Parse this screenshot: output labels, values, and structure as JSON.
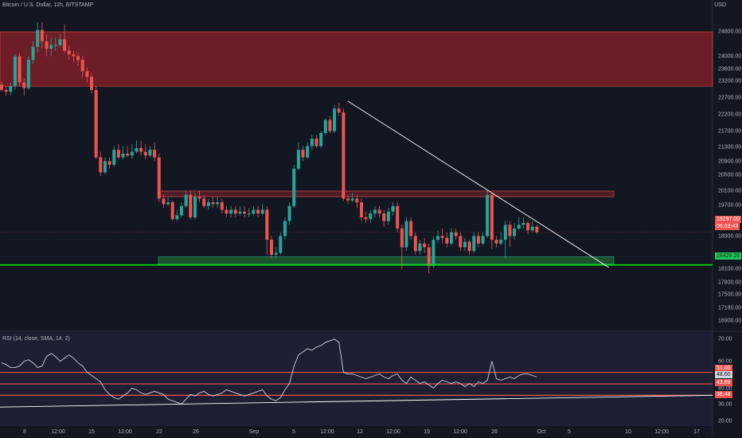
{
  "chart": {
    "symbol_title": "Bitcoin / U.S. Dollar, 12h, BITSTAMP",
    "currency": "USD",
    "rsi_title": "RSI (14, close, SMA, 14, 2)"
  },
  "price_axis": [
    "24800.00",
    "24000.00",
    "23600.00",
    "23200.00",
    "22700.00",
    "22200.00",
    "21700.00",
    "21300.00",
    "20900.00",
    "20500.00",
    "20100.00",
    "19700.00",
    "18900.00",
    "18100.00",
    "17800.00",
    "17500.00",
    "17180.00",
    "16900.00"
  ],
  "rsi_axis": [
    "70.00",
    "60.00",
    "40.00",
    "30.00",
    "20.00"
  ],
  "price_tags": {
    "current": "19297.00",
    "countdown": "06:03:43",
    "support": "18428.26"
  },
  "rsi_tags": [
    "51.00",
    "48.60",
    "43.69",
    "36.48"
  ],
  "date_axis": [
    "8",
    "12:00",
    "15",
    "12:00",
    "22",
    "26",
    "Sep",
    "5",
    "12:00",
    "12",
    "12:00",
    "19",
    "12:00",
    "26",
    "Oct",
    "5",
    "10",
    "12:00",
    "17"
  ],
  "colors": {
    "background": "#131722",
    "up": "#26a69a",
    "down": "#ef5350",
    "resistance_zone": "#7d1f27",
    "support_line": "#00e600",
    "rsi_panel": "#1e1f33"
  },
  "chart_data": {
    "type": "candlestick",
    "title": "Bitcoin / U.S. Dollar, 12h, BITSTAMP",
    "candles": [
      [
        23240,
        23100,
        23320,
        23050
      ],
      [
        23100,
        23050,
        23200,
        22950
      ],
      [
        23050,
        23200,
        23300,
        22950
      ],
      [
        23200,
        24000,
        24050,
        23100
      ],
      [
        24000,
        23300,
        24100,
        23200
      ],
      [
        23300,
        23150,
        23400,
        22950
      ],
      [
        23150,
        23900,
        24000,
        23100
      ],
      [
        23900,
        24250,
        24400,
        23800
      ],
      [
        24250,
        24700,
        24900,
        24100
      ],
      [
        24700,
        24400,
        24900,
        24200
      ],
      [
        24400,
        24200,
        24600,
        24000
      ],
      [
        24200,
        24300,
        24500,
        24000
      ],
      [
        24300,
        24300,
        24500,
        24150
      ],
      [
        24300,
        24450,
        24600,
        24250
      ],
      [
        24450,
        24150,
        24850,
        24100
      ],
      [
        24150,
        24050,
        24300,
        23900
      ],
      [
        24050,
        24000,
        24150,
        23850
      ],
      [
        24000,
        23900,
        24100,
        23750
      ],
      [
        23900,
        23600,
        24000,
        23450
      ],
      [
        23600,
        23450,
        23700,
        23300
      ],
      [
        23450,
        23100,
        23550,
        23000
      ],
      [
        23100,
        21300,
        23200,
        21250
      ],
      [
        21300,
        20900,
        21450,
        20800
      ],
      [
        20900,
        21200,
        21300,
        20850
      ],
      [
        21200,
        21100,
        21300,
        21000
      ],
      [
        21100,
        21500,
        21600,
        21050
      ],
      [
        21500,
        21300,
        21650,
        21250
      ],
      [
        21300,
        21400,
        21600,
        21250
      ],
      [
        21400,
        21350,
        21600,
        21300
      ],
      [
        21350,
        21450,
        21650,
        21250
      ],
      [
        21450,
        21550,
        21750,
        21400
      ],
      [
        21550,
        21450,
        21750,
        21350
      ],
      [
        21450,
        21350,
        21650,
        21250
      ],
      [
        21350,
        21500,
        21600,
        21300
      ],
      [
        21500,
        21300,
        21700,
        21200
      ],
      [
        21300,
        20200,
        21400,
        20100
      ],
      [
        20200,
        20050,
        20300,
        19950
      ],
      [
        20050,
        20100,
        20250,
        20000
      ],
      [
        20100,
        19650,
        20150,
        19600
      ],
      [
        19650,
        19750,
        19900,
        19600
      ],
      [
        19750,
        20000,
        20100,
        19700
      ],
      [
        20000,
        20300,
        20400,
        19950
      ],
      [
        20300,
        19700,
        20400,
        19650
      ],
      [
        19700,
        20250,
        20350,
        19650
      ],
      [
        20250,
        20200,
        20400,
        20100
      ],
      [
        20200,
        20000,
        20300,
        19950
      ],
      [
        20000,
        20100,
        20200,
        19900
      ],
      [
        20100,
        20050,
        20250,
        19950
      ],
      [
        20050,
        20100,
        20250,
        19950
      ],
      [
        20100,
        19900,
        20200,
        19800
      ],
      [
        19900,
        19800,
        20000,
        19700
      ],
      [
        19800,
        19900,
        20000,
        19700
      ],
      [
        19900,
        19800,
        20000,
        19700
      ],
      [
        19800,
        19850,
        20000,
        19750
      ],
      [
        19850,
        19800,
        20000,
        19700
      ],
      [
        19800,
        19800,
        19950,
        19700
      ],
      [
        19800,
        19900,
        20000,
        19750
      ],
      [
        19900,
        19800,
        20000,
        19700
      ],
      [
        19800,
        19900,
        20050,
        19750
      ],
      [
        19900,
        19100,
        20000,
        18700
      ],
      [
        19100,
        18700,
        19200,
        18600
      ],
      [
        18700,
        18750,
        18900,
        18600
      ],
      [
        18750,
        19200,
        19300,
        18700
      ],
      [
        19200,
        19600,
        19700,
        19100
      ],
      [
        19600,
        20000,
        20100,
        19500
      ],
      [
        20000,
        21000,
        21100,
        19950
      ],
      [
        21000,
        21500,
        21700,
        20950
      ],
      [
        21500,
        21300,
        21600,
        21200
      ],
      [
        21300,
        21600,
        21700,
        21250
      ],
      [
        21600,
        21800,
        21900,
        21500
      ],
      [
        21800,
        21600,
        21900,
        21550
      ],
      [
        21600,
        21950,
        22000,
        21550
      ],
      [
        21950,
        22300,
        22350,
        21900
      ],
      [
        22300,
        22000,
        22400,
        21950
      ],
      [
        22000,
        22600,
        22700,
        21950
      ],
      [
        22600,
        22500,
        22750,
        22400
      ],
      [
        22500,
        20200,
        22600,
        20150
      ],
      [
        20200,
        20150,
        20300,
        20050
      ],
      [
        20150,
        20200,
        20350,
        20100
      ],
      [
        20200,
        20100,
        20300,
        19950
      ],
      [
        20100,
        19700,
        20200,
        19600
      ],
      [
        19700,
        19650,
        19850,
        19550
      ],
      [
        19650,
        19800,
        19900,
        19550
      ],
      [
        19800,
        19900,
        20000,
        19700
      ],
      [
        19900,
        19800,
        20000,
        19700
      ],
      [
        19800,
        19600,
        19900,
        19450
      ],
      [
        19600,
        19850,
        19950,
        19500
      ],
      [
        19850,
        20000,
        20100,
        19750
      ],
      [
        20000,
        19400,
        20100,
        19300
      ],
      [
        19400,
        18900,
        19500,
        18300
      ],
      [
        18900,
        19600,
        19700,
        18800
      ],
      [
        19600,
        19200,
        19700,
        19100
      ],
      [
        19200,
        18800,
        19300,
        18700
      ],
      [
        18800,
        19000,
        19100,
        18700
      ],
      [
        19000,
        18900,
        19150,
        18750
      ],
      [
        18900,
        18400,
        19000,
        18200
      ],
      [
        18400,
        19100,
        19200,
        18350
      ],
      [
        19100,
        19200,
        19350,
        19000
      ],
      [
        19200,
        19150,
        19400,
        19000
      ],
      [
        19150,
        19000,
        19300,
        18900
      ],
      [
        19000,
        19300,
        19400,
        18950
      ],
      [
        19300,
        19200,
        19400,
        19100
      ],
      [
        19200,
        18900,
        19300,
        18800
      ],
      [
        18900,
        19050,
        19150,
        18800
      ],
      [
        19050,
        18800,
        19100,
        18700
      ],
      [
        18800,
        19200,
        19300,
        18750
      ],
      [
        19200,
        19000,
        19300,
        18900
      ],
      [
        19000,
        19200,
        19300,
        18950
      ],
      [
        19200,
        20300,
        20400,
        19150
      ],
      [
        20300,
        19100,
        20350,
        18850
      ],
      [
        19100,
        19000,
        19200,
        18900
      ],
      [
        19000,
        19100,
        19300,
        18950
      ],
      [
        19100,
        19500,
        19600,
        18600
      ],
      [
        19500,
        19200,
        19600,
        18900
      ],
      [
        19200,
        19400,
        19550,
        19100
      ],
      [
        19400,
        19500,
        19700,
        19350
      ],
      [
        19500,
        19550,
        19700,
        19400
      ],
      [
        19550,
        19350,
        19600,
        19250
      ],
      [
        19350,
        19450,
        19600,
        19300
      ],
      [
        19450,
        19300,
        19500,
        19250
      ]
    ],
    "resistance_zone": [
      23200,
      24650
    ],
    "mid_zone": [
      20250,
      20400
    ],
    "support_zone": [
      18450,
      18650
    ],
    "support_level": 18428.26,
    "trendline": {
      "start_index": 77,
      "start_price": 22800,
      "end_index": 135,
      "end_price": 18360
    },
    "rsi": [
      57,
      56,
      54,
      54,
      55,
      58,
      59,
      57,
      54,
      55,
      61,
      63,
      61,
      58,
      60,
      62,
      60,
      57,
      55,
      51,
      49,
      47,
      45,
      40,
      37,
      35,
      34,
      36,
      38,
      41,
      40,
      38,
      37,
      38,
      39,
      38,
      37,
      34,
      33,
      32,
      31,
      34,
      37,
      36,
      38,
      39,
      37,
      36,
      37,
      38,
      40,
      39,
      38,
      37,
      36,
      37,
      38,
      39,
      40,
      36,
      34,
      33,
      35,
      40,
      44,
      55,
      62,
      64,
      66,
      65,
      67,
      68,
      70,
      71,
      72,
      70,
      51,
      50,
      50,
      49,
      48,
      47,
      48,
      49,
      50,
      48,
      47,
      49,
      50,
      46,
      44,
      48,
      46,
      44,
      45,
      43,
      41,
      44,
      46,
      45,
      44,
      45,
      44,
      42,
      44,
      42,
      45,
      44,
      46,
      58,
      47,
      46,
      47,
      48,
      47,
      49,
      50,
      50,
      49,
      48
    ],
    "rsi_levels": [
      51.0,
      48.6,
      43.69,
      36.48
    ],
    "rsi_trendline": {
      "start": 29,
      "end": 36.5
    },
    "price_range": [
      16700,
      25500
    ],
    "rsi_range": [
      17,
      76
    ]
  }
}
